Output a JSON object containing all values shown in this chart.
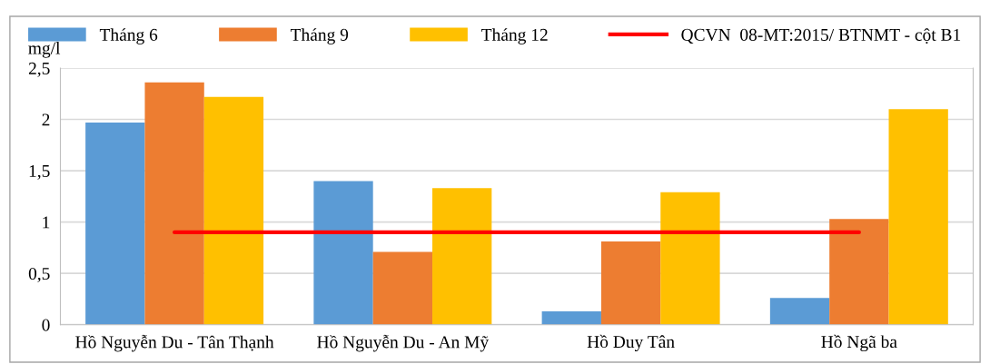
{
  "chart_data": {
    "type": "bar",
    "ylabel": "mg/l",
    "categories": [
      "Hồ Nguyễn Du - Tân Thạnh",
      "Hồ Nguyễn Du - An Mỹ",
      "Hồ Duy Tân",
      "Hồ Ngã ba"
    ],
    "series": [
      {
        "name": "Tháng 6",
        "color": "#5b9bd5",
        "values": [
          1.97,
          1.4,
          0.13,
          0.26
        ]
      },
      {
        "name": "Tháng 9",
        "color": "#ed7d31",
        "values": [
          2.36,
          0.71,
          0.81,
          1.03
        ]
      },
      {
        "name": "Tháng 12",
        "color": "#ffc000",
        "values": [
          2.22,
          1.33,
          1.29,
          2.1
        ]
      },
      {
        "name": "QCVN  08-MT:2015/ BTNMT - cột B1",
        "type": "line",
        "color": "#ff0000",
        "values": [
          0.9,
          0.9,
          0.9,
          0.9
        ]
      }
    ],
    "ylim": [
      0,
      2.5
    ],
    "yticks": [
      0,
      {
        "value": 0.5,
        "label": "0,5"
      },
      1,
      {
        "value": 1.5,
        "label": "1,5"
      },
      2,
      {
        "value": 2.5,
        "label": "2,5"
      }
    ],
    "grid": "y",
    "legend": "top",
    "marker": "none",
    "line_style": "solid"
  }
}
